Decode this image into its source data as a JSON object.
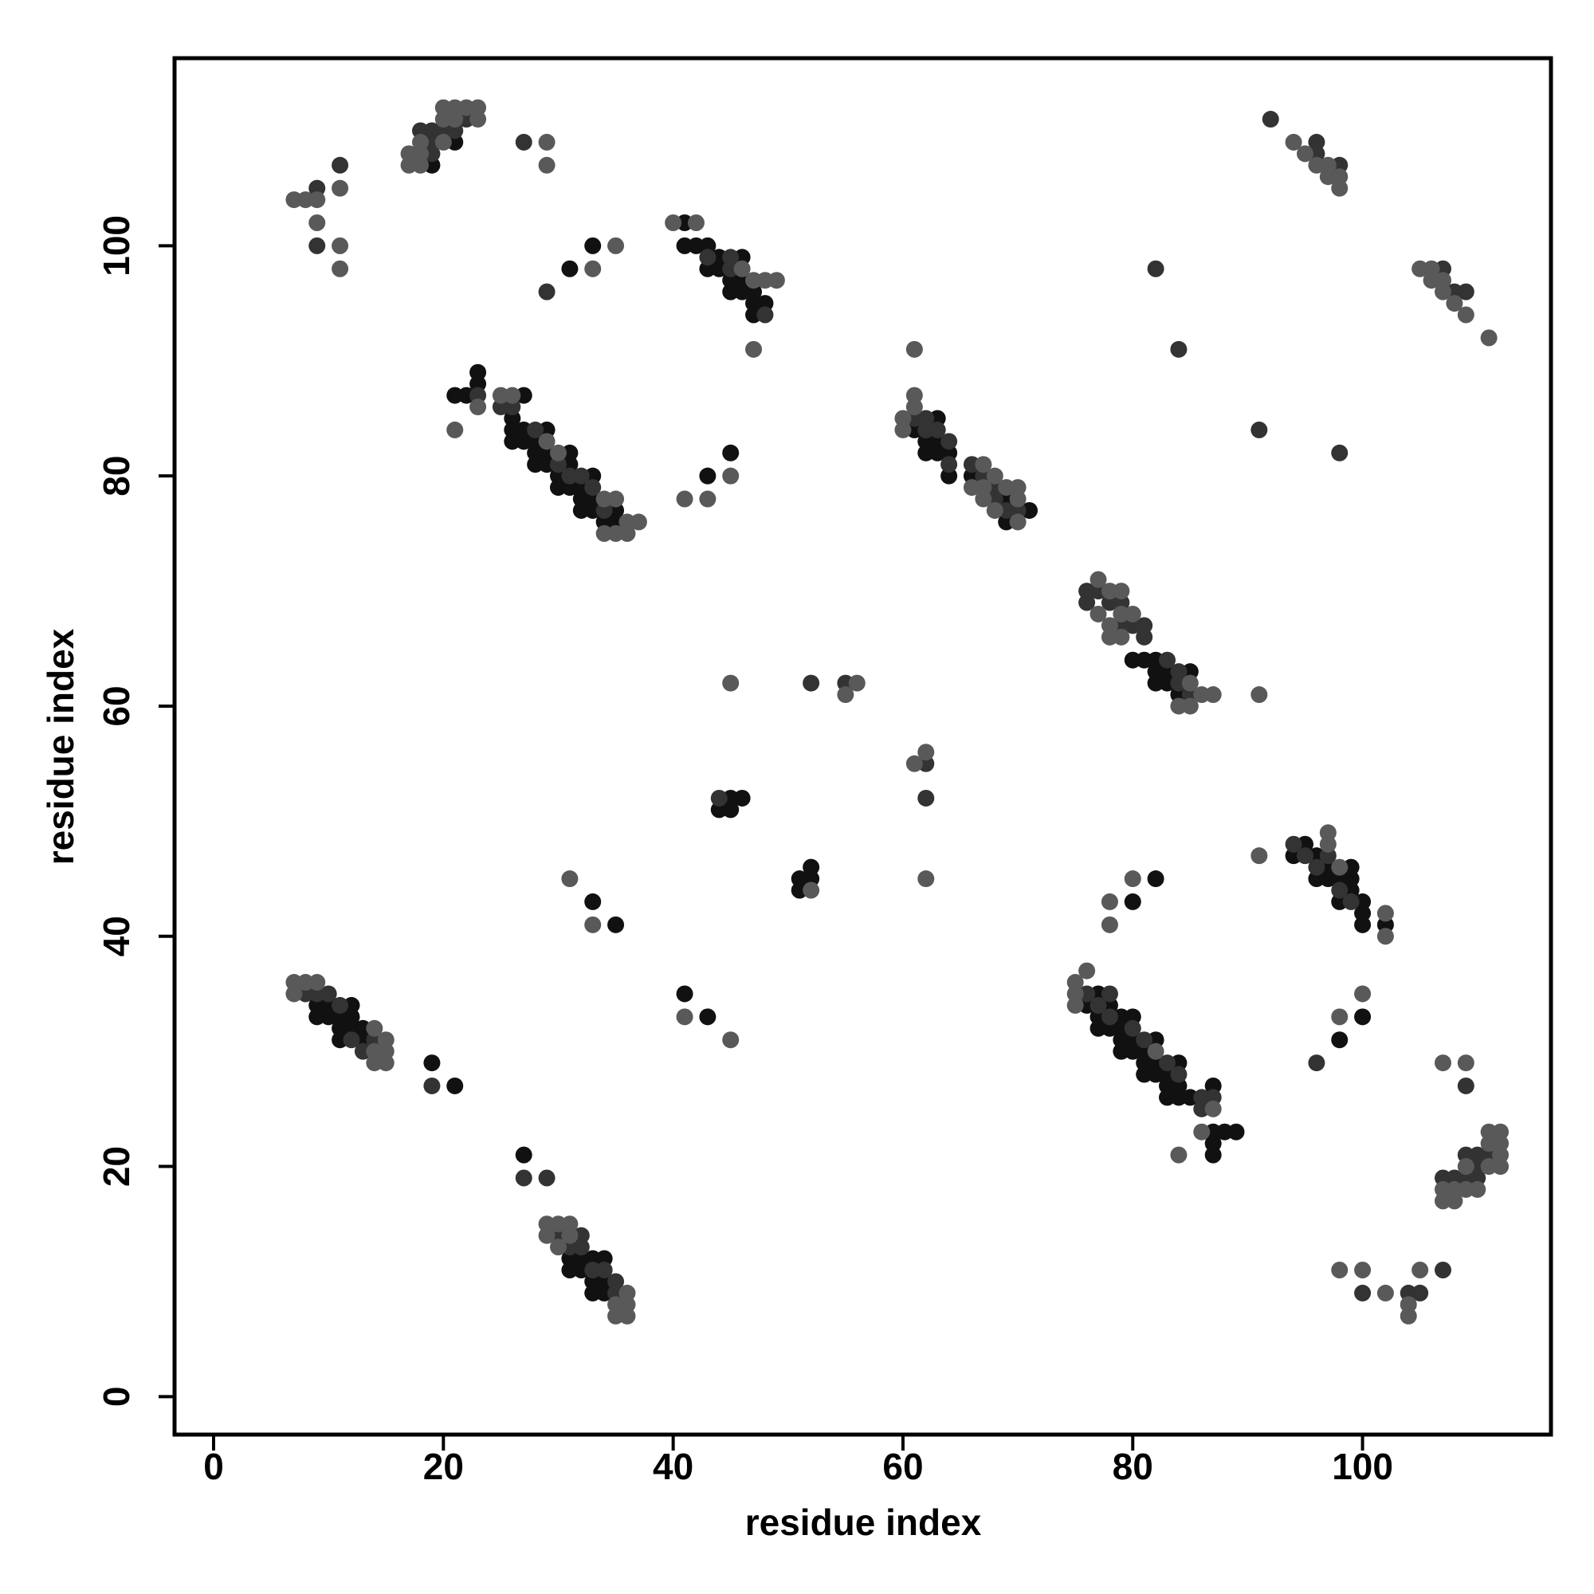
{
  "chart_data": {
    "type": "scatter",
    "x_label": "residue index",
    "y_label": "residue index",
    "xlim": [
      -3.4,
      116.4
    ],
    "ylim": [
      -3.3,
      116.3
    ],
    "xticks": [
      0,
      20,
      40,
      60,
      80,
      100
    ],
    "yticks": [
      0,
      20,
      40,
      60,
      80,
      100
    ],
    "grid": false,
    "series": [
      {
        "color": "#111111",
        "x": [
          19,
          21,
          31,
          33,
          41,
          41,
          42,
          43,
          43,
          44,
          44,
          45,
          46,
          46,
          45,
          46,
          47,
          47,
          47,
          48,
          21,
          22,
          23,
          23,
          27,
          26,
          26,
          26,
          27,
          27,
          28,
          28,
          28,
          29,
          29,
          29,
          30,
          30,
          31,
          31,
          31,
          32,
          32,
          32,
          33,
          33,
          33,
          34,
          35,
          35,
          43,
          45,
          61,
          62,
          62,
          63,
          63,
          63,
          64,
          64,
          66,
          69,
          69,
          71,
          80,
          81,
          82,
          82,
          82,
          83,
          83,
          84,
          85,
          45,
          46,
          44,
          45,
          51,
          51,
          52,
          52,
          33,
          35,
          95,
          94,
          96,
          96,
          97,
          97,
          98,
          98,
          99,
          99,
          99,
          100,
          100,
          100,
          102,
          80,
          82,
          9,
          9,
          10,
          10,
          11,
          11,
          11,
          12,
          12,
          12,
          13,
          13,
          19,
          21,
          41,
          43,
          76,
          77,
          77,
          77,
          78,
          78,
          79,
          79,
          79,
          79,
          80,
          80,
          80,
          81,
          81,
          81,
          82,
          82,
          82,
          83,
          83,
          83,
          84,
          84,
          84,
          85,
          87,
          87,
          87,
          87,
          88,
          89,
          98,
          100,
          27,
          31,
          31,
          32,
          32,
          33,
          33,
          33,
          34,
          34,
          34
        ],
        "y": [
          107,
          109,
          98,
          100,
          102,
          100,
          100,
          100,
          98,
          98,
          99,
          97,
          99,
          97,
          96,
          96,
          96,
          95,
          94,
          95,
          87,
          87,
          89,
          88,
          87,
          85,
          84,
          83,
          84,
          83,
          83,
          82,
          81,
          84,
          82,
          81,
          80,
          79,
          82,
          81,
          79,
          79,
          78,
          77,
          80,
          78,
          77,
          76,
          77,
          76,
          80,
          82,
          84,
          83,
          82,
          85,
          83,
          82,
          82,
          80,
          80,
          78,
          76,
          77,
          64,
          64,
          64,
          63,
          62,
          63,
          62,
          61,
          63,
          52,
          52,
          51,
          51,
          45,
          44,
          46,
          45,
          43,
          41,
          48,
          47,
          47,
          45,
          46,
          45,
          45,
          43,
          46,
          45,
          44,
          43,
          42,
          41,
          41,
          43,
          45,
          34,
          33,
          34,
          33,
          33,
          32,
          31,
          34,
          33,
          32,
          32,
          31,
          29,
          27,
          35,
          33,
          34,
          35,
          33,
          32,
          34,
          32,
          33,
          32,
          31,
          30,
          33,
          31,
          30,
          30,
          29,
          28,
          31,
          29,
          28,
          28,
          27,
          26,
          29,
          27,
          26,
          26,
          27,
          23,
          22,
          21,
          23,
          23,
          31,
          33,
          21,
          12,
          11,
          12,
          11,
          12,
          10,
          9,
          12,
          10,
          9
        ]
      },
      {
        "color": "#333333",
        "x": [
          9,
          9,
          11,
          18,
          19,
          19,
          19,
          20,
          21,
          22,
          27,
          29,
          43,
          45,
          45,
          48,
          23,
          25,
          26,
          28,
          30,
          31,
          32,
          33,
          34,
          61,
          62,
          62,
          63,
          64,
          64,
          66,
          67,
          68,
          68,
          69,
          70,
          82,
          84,
          91,
          98,
          76,
          76,
          77,
          78,
          79,
          79,
          80,
          81,
          81,
          83,
          84,
          84,
          85,
          52,
          55,
          62,
          62,
          44,
          94,
          95,
          96,
          97,
          98,
          99,
          8,
          9,
          10,
          11,
          12,
          13,
          14,
          19,
          76,
          77,
          78,
          78,
          80,
          81,
          83,
          84,
          86,
          86,
          87,
          96,
          109,
          107,
          108,
          109,
          109,
          110,
          110,
          110,
          111,
          27,
          29,
          30,
          31,
          32,
          32,
          33,
          34,
          35,
          35,
          100,
          104,
          105,
          107,
          92,
          96,
          96,
          98,
          107,
          108,
          109
        ],
        "y": [
          105,
          100,
          107,
          110,
          110,
          109,
          108,
          110,
          110,
          111,
          109,
          96,
          99,
          99,
          98,
          94,
          87,
          86,
          86,
          84,
          81,
          80,
          80,
          79,
          77,
          85,
          85,
          84,
          84,
          83,
          81,
          81,
          80,
          79,
          78,
          77,
          77,
          98,
          91,
          84,
          82,
          70,
          69,
          70,
          69,
          69,
          67,
          67,
          67,
          66,
          64,
          63,
          62,
          61,
          62,
          62,
          55,
          52,
          52,
          48,
          47,
          46,
          47,
          44,
          43,
          35,
          35,
          35,
          34,
          31,
          30,
          31,
          27,
          35,
          34,
          35,
          33,
          32,
          31,
          29,
          28,
          25,
          26,
          26,
          29,
          27,
          19,
          19,
          21,
          19,
          21,
          20,
          19,
          21,
          19,
          19,
          14,
          13,
          14,
          13,
          11,
          11,
          10,
          9,
          9,
          9,
          9,
          11,
          111,
          109,
          108,
          107,
          98,
          96,
          96
        ]
      },
      {
        "color": "#595959",
        "x": [
          7,
          8,
          9,
          9,
          11,
          11,
          11,
          17,
          17,
          18,
          18,
          18,
          20,
          21,
          21,
          22,
          23,
          23,
          20,
          20,
          29,
          29,
          33,
          35,
          40,
          42,
          46,
          47,
          48,
          49,
          47,
          23,
          21,
          25,
          26,
          29,
          30,
          34,
          34,
          35,
          35,
          36,
          36,
          37,
          41,
          43,
          45,
          61,
          61,
          61,
          60,
          60,
          67,
          66,
          67,
          67,
          68,
          68,
          69,
          70,
          70,
          70,
          77,
          77,
          78,
          78,
          78,
          79,
          79,
          79,
          80,
          84,
          85,
          85,
          86,
          87,
          91,
          45,
          55,
          56,
          61,
          62,
          62,
          52,
          31,
          33,
          91,
          97,
          97,
          98,
          102,
          102,
          78,
          78,
          80,
          7,
          7,
          8,
          9,
          14,
          14,
          14,
          15,
          15,
          15,
          41,
          45,
          75,
          75,
          75,
          76,
          82,
          86,
          87,
          84,
          98,
          100,
          107,
          109,
          107,
          107,
          108,
          108,
          109,
          109,
          110,
          111,
          111,
          111,
          112,
          112,
          112,
          112,
          29,
          29,
          30,
          30,
          31,
          31,
          35,
          35,
          36,
          36,
          36,
          98,
          100,
          102,
          104,
          104,
          105,
          94,
          95,
          96,
          97,
          97,
          98,
          98,
          105,
          106,
          106,
          107,
          107,
          108,
          109,
          111
        ],
        "y": [
          104,
          104,
          104,
          102,
          105,
          100,
          98,
          108,
          107,
          109,
          108,
          107,
          109,
          112,
          111,
          112,
          112,
          111,
          112,
          111,
          109,
          107,
          98,
          100,
          102,
          102,
          98,
          97,
          97,
          97,
          91,
          86,
          84,
          87,
          87,
          83,
          82,
          78,
          75,
          78,
          75,
          76,
          75,
          76,
          78,
          78,
          80,
          91,
          87,
          86,
          85,
          84,
          81,
          79,
          79,
          78,
          80,
          77,
          79,
          79,
          78,
          76,
          71,
          68,
          70,
          67,
          66,
          70,
          68,
          66,
          68,
          60,
          62,
          60,
          61,
          61,
          61,
          62,
          61,
          62,
          55,
          56,
          45,
          44,
          45,
          41,
          47,
          49,
          48,
          46,
          42,
          40,
          43,
          41,
          45,
          36,
          35,
          36,
          36,
          32,
          30,
          29,
          31,
          30,
          29,
          33,
          31,
          36,
          35,
          34,
          37,
          30,
          23,
          25,
          21,
          33,
          35,
          29,
          29,
          18,
          17,
          18,
          17,
          18,
          20,
          18,
          23,
          22,
          20,
          23,
          22,
          21,
          20,
          15,
          14,
          15,
          13,
          15,
          14,
          8,
          7,
          9,
          8,
          7,
          11,
          11,
          9,
          8,
          7,
          11,
          109,
          108,
          107,
          107,
          106,
          106,
          105,
          98,
          98,
          97,
          97,
          96,
          95,
          94,
          92
        ]
      }
    ]
  }
}
